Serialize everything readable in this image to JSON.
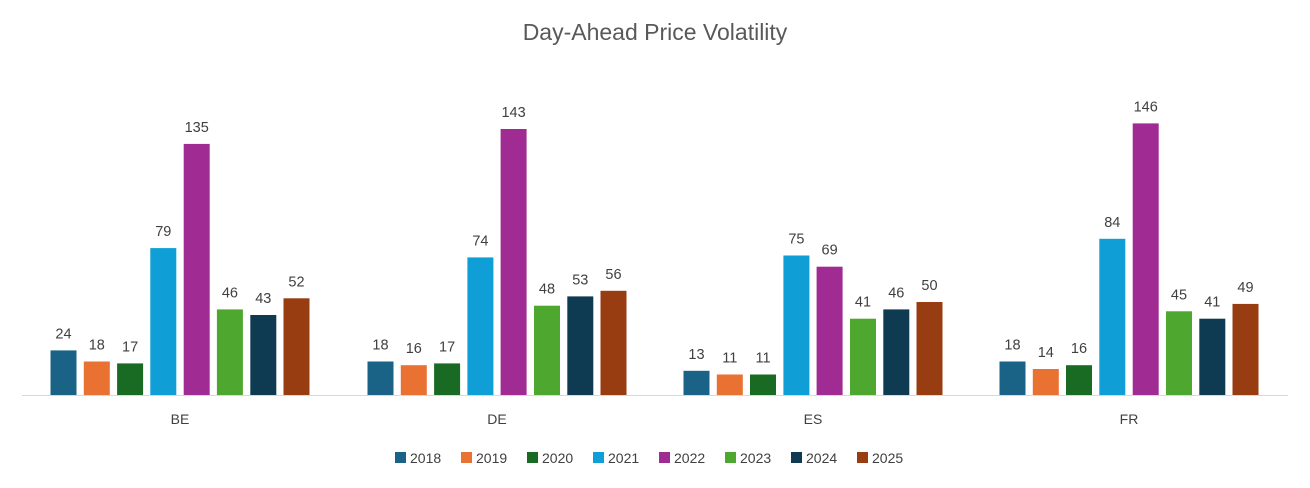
{
  "chart_data": {
    "type": "bar",
    "title": "Day-Ahead Price Volatility",
    "xlabel": "",
    "ylabel": "",
    "categories": [
      "BE",
      "DE",
      "ES",
      "FR"
    ],
    "series": [
      {
        "name": "2018",
        "color": "#1b6386",
        "values": [
          24,
          18,
          13,
          18
        ]
      },
      {
        "name": "2019",
        "color": "#e97132",
        "values": [
          18,
          16,
          11,
          14
        ]
      },
      {
        "name": "2020",
        "color": "#196b24",
        "values": [
          17,
          17,
          11,
          16
        ]
      },
      {
        "name": "2021",
        "color": "#0f9ed5",
        "values": [
          79,
          74,
          75,
          84
        ]
      },
      {
        "name": "2022",
        "color": "#a02b93",
        "values": [
          135,
          143,
          69,
          146
        ]
      },
      {
        "name": "2023",
        "color": "#4ea72e",
        "values": [
          46,
          48,
          41,
          45
        ]
      },
      {
        "name": "2024",
        "color": "#0e3a52",
        "values": [
          43,
          53,
          46,
          41
        ]
      },
      {
        "name": "2025",
        "color": "#983c12",
        "values": [
          52,
          56,
          50,
          49
        ]
      }
    ],
    "data_labels": true,
    "gridlines": false,
    "legend_position": "bottom"
  }
}
